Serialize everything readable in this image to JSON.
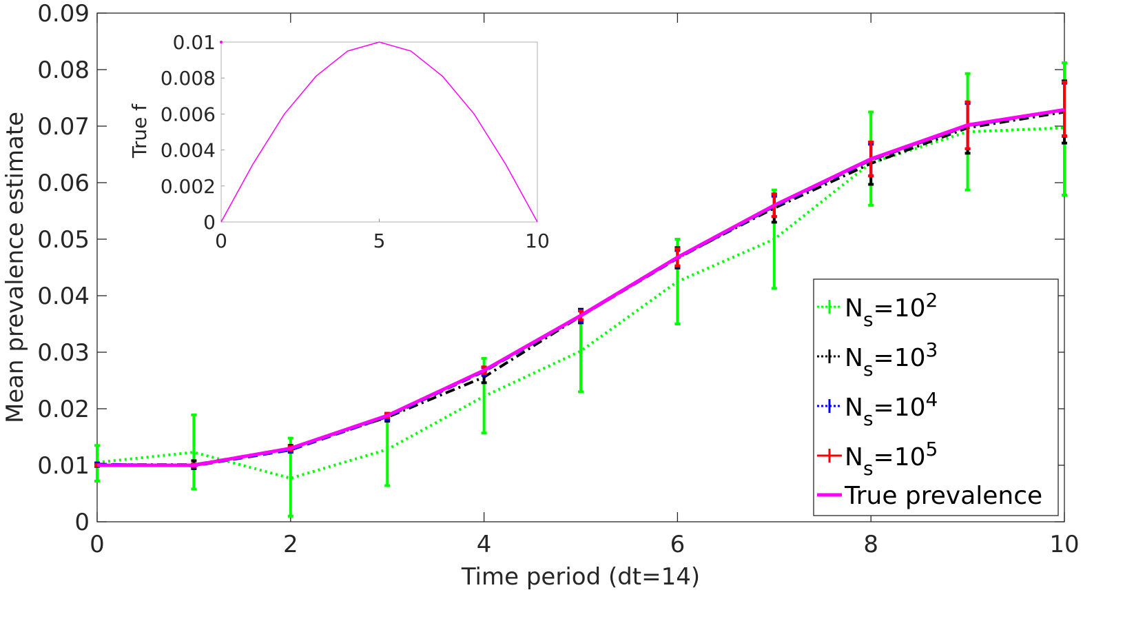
{
  "chart_data": [
    {
      "type": "line",
      "title": "",
      "xlabel": "Time period (dt=14)",
      "ylabel": "Mean prevalence estimate",
      "xlim": [
        0,
        10
      ],
      "ylim": [
        0,
        0.09
      ],
      "xticks": [
        "0",
        "2",
        "4",
        "6",
        "8",
        "10"
      ],
      "yticks": [
        "0",
        "0.01",
        "0.02",
        "0.03",
        "0.04",
        "0.05",
        "0.06",
        "0.07",
        "0.08",
        "0.09"
      ],
      "grid": false,
      "legend_position": "bottom-right",
      "x": [
        0,
        1,
        2,
        3,
        4,
        5,
        6,
        7,
        8,
        9,
        10
      ],
      "series": [
        {
          "name": "N_s=10^2",
          "label_base": "N",
          "label_sub": "s",
          "label_eq": "=10",
          "label_sup": "2",
          "color": "#00ff00",
          "style": "dotted",
          "error_bars": true,
          "values": [
            0.0105,
            0.0123,
            0.0077,
            0.0128,
            0.0222,
            0.0302,
            0.0425,
            0.05,
            0.0635,
            0.069,
            0.0697
          ],
          "lower": [
            0.0072,
            0.0058,
            0.001,
            0.0064,
            0.0157,
            0.023,
            0.035,
            0.0413,
            0.056,
            0.0587,
            0.0578
          ],
          "upper": [
            0.0135,
            0.0189,
            0.0148,
            0.0181,
            0.0289,
            0.0375,
            0.05,
            0.0587,
            0.0725,
            0.0793,
            0.0812
          ]
        },
        {
          "name": "N_s=10^3",
          "label_base": "N",
          "label_sub": "s",
          "label_eq": "=10",
          "label_sup": "3",
          "color": "#000000",
          "style": "dashdot",
          "error_bars": true,
          "values": [
            0.0101,
            0.0101,
            0.013,
            0.0185,
            0.0256,
            0.0364,
            0.0467,
            0.0555,
            0.0634,
            0.0697,
            0.0725
          ],
          "lower": [
            0.0098,
            0.0094,
            0.0125,
            0.0178,
            0.0246,
            0.0352,
            0.0449,
            0.053,
            0.0597,
            0.0652,
            0.067
          ],
          "upper": [
            0.0104,
            0.0108,
            0.0135,
            0.0192,
            0.0266,
            0.0376,
            0.0485,
            0.058,
            0.0671,
            0.0742,
            0.078
          ]
        },
        {
          "name": "N_s=10^4",
          "label_base": "N",
          "label_sub": "s",
          "label_eq": "=10",
          "label_sup": "4",
          "color": "#0000ff",
          "style": "dashed",
          "error_bars": true,
          "values": [
            0.0102,
            0.0099,
            0.0127,
            0.0186,
            0.0266,
            0.0364,
            0.0466,
            0.0558,
            0.064,
            0.07,
            0.0729
          ],
          "lower": [
            0.01,
            0.0096,
            0.0123,
            0.0181,
            0.0259,
            0.0354,
            0.0452,
            0.054,
            0.0612,
            0.066,
            0.0682
          ],
          "upper": [
            0.0104,
            0.0102,
            0.0131,
            0.0191,
            0.0273,
            0.0374,
            0.048,
            0.0576,
            0.0668,
            0.074,
            0.0776
          ]
        },
        {
          "name": "N_s=10^5",
          "label_base": "N",
          "label_sub": "s",
          "label_eq": "=10",
          "label_sup": "5",
          "color": "#ff0000",
          "style": "solid",
          "error_bars": true,
          "values": [
            0.01,
            0.01,
            0.013,
            0.0188,
            0.0268,
            0.0365,
            0.0468,
            0.056,
            0.0641,
            0.0701,
            0.0729
          ],
          "lower": [
            0.0099,
            0.0098,
            0.0127,
            0.0184,
            0.0262,
            0.0357,
            0.0453,
            0.054,
            0.0612,
            0.066,
            0.0683
          ],
          "upper": [
            0.0101,
            0.0102,
            0.0133,
            0.0192,
            0.0274,
            0.0373,
            0.0483,
            0.058,
            0.0672,
            0.0743,
            0.0778
          ]
        },
        {
          "name": "True prevalence",
          "color": "#ff00ff",
          "style": "solid",
          "error_bars": false,
          "values": [
            0.01,
            0.01,
            0.013,
            0.0188,
            0.0268,
            0.0365,
            0.0468,
            0.056,
            0.0642,
            0.0702,
            0.0729
          ]
        }
      ]
    },
    {
      "type": "line",
      "title": "",
      "xlabel": "",
      "ylabel": "True f",
      "xlim": [
        0,
        10
      ],
      "ylim": [
        0,
        0.01
      ],
      "xticks": [
        "0",
        "5",
        "10"
      ],
      "yticks": [
        "0",
        "0.002",
        "0.004",
        "0.006",
        "0.008",
        "0.01"
      ],
      "grid": false,
      "x": [
        0,
        1,
        2,
        3,
        4,
        5,
        6,
        7,
        8,
        9,
        10
      ],
      "series": [
        {
          "color": "#ff00ff",
          "values": [
            0,
            0.0032,
            0.006,
            0.0081,
            0.0095,
            0.01,
            0.0095,
            0.0081,
            0.006,
            0.0032,
            0
          ]
        }
      ],
      "marker_point": {
        "x": 0,
        "y": 0.01,
        "color": "#ff00ff"
      }
    }
  ]
}
